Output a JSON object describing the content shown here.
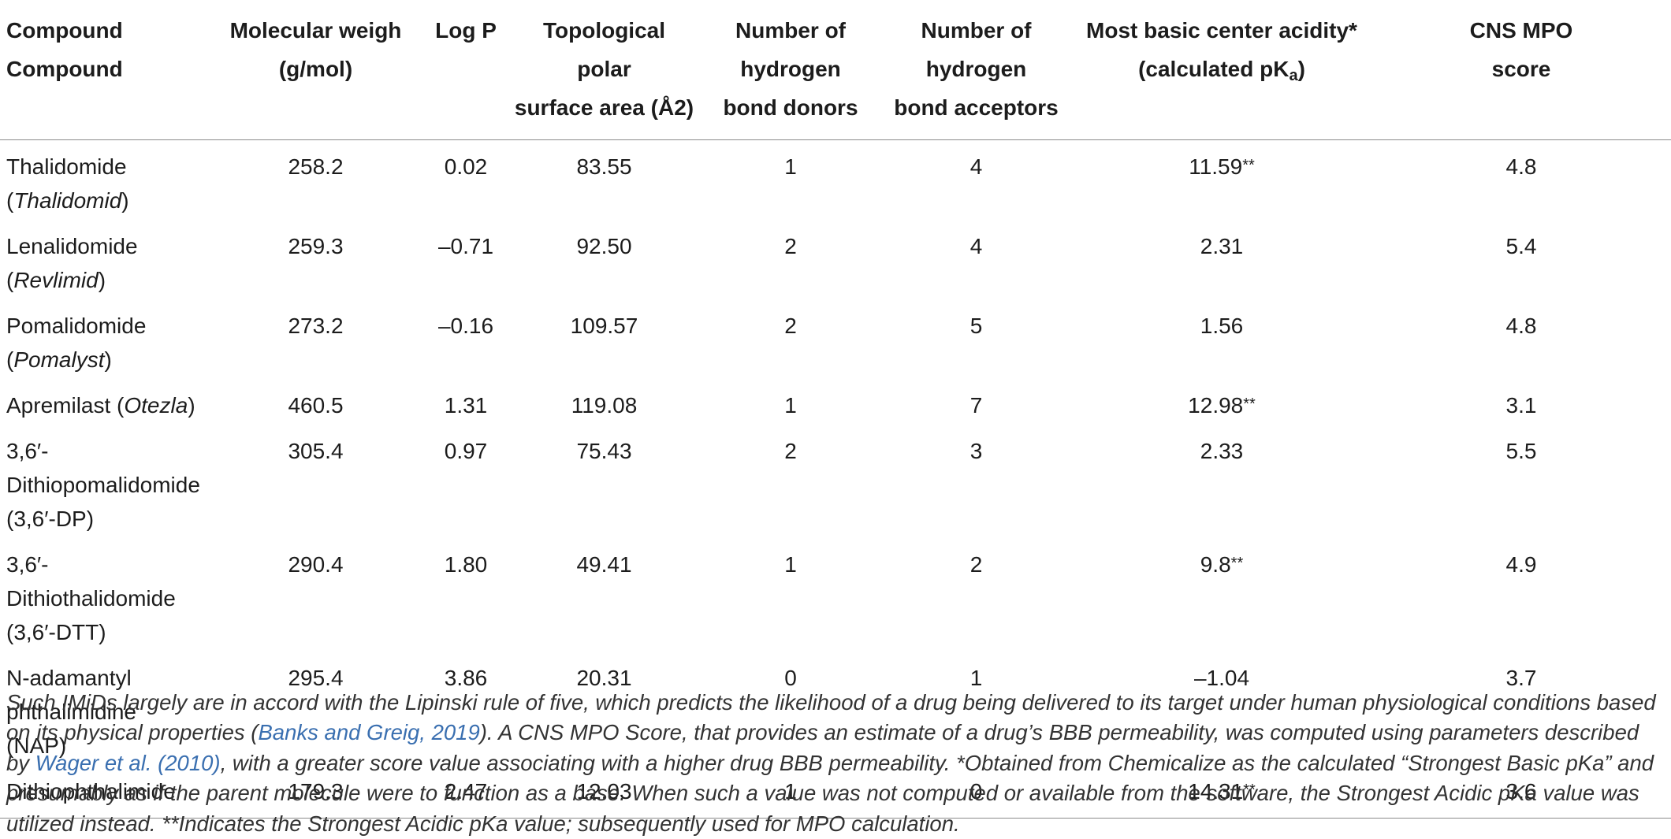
{
  "table": {
    "headers": [
      {
        "line1": "Compound",
        "line2": "Compound"
      },
      {
        "line1": "Molecular weigh",
        "line2": "(g/mol)"
      },
      {
        "line1": "Log P",
        "line2": ""
      },
      {
        "line1": "Topological polar",
        "line2": "surface area (Å2)"
      },
      {
        "line1": "Number of hydrogen",
        "line2": "bond donors"
      },
      {
        "line1": "Number of hydrogen",
        "line2": "bond acceptors"
      },
      {
        "line1": "Most basic center acidity*",
        "line2": "(calculated pK",
        "line2_sub": "a",
        "line2_end": ")"
      },
      {
        "line1": "CNS MPO",
        "line2": "score"
      }
    ],
    "rows": [
      {
        "name": [
          "Thalidomide",
          ""
        ],
        "name_italic": "Thalidomid",
        "name_italic_prefix": "(",
        "name_italic_suffix": ")",
        "mw": "258.2",
        "logp": "0.02",
        "tpsa": "83.55",
        "hbd": "1",
        "hba": "4",
        "pka": "11.59",
        "pka_mark": "**",
        "mpo": "4.8"
      },
      {
        "name": [
          "Lenalidomide",
          ""
        ],
        "name_italic": "Revlimid",
        "name_italic_prefix": "(",
        "name_italic_suffix": ")",
        "mw": "259.3",
        "logp": "–0.71",
        "tpsa": "92.50",
        "hbd": "2",
        "hba": "4",
        "pka": "2.31",
        "pka_mark": "",
        "mpo": "5.4"
      },
      {
        "name": [
          "Pomalidomide",
          ""
        ],
        "name_italic": "Pomalyst",
        "name_italic_prefix": "(",
        "name_italic_suffix": ")",
        "mw": "273.2",
        "logp": "–0.16",
        "tpsa": "109.57",
        "hbd": "2",
        "hba": "5",
        "pka": "1.56",
        "pka_mark": "",
        "mpo": "4.8"
      },
      {
        "name": [
          "Apremilast (",
          ""
        ],
        "name_italic": "Otezla",
        "name_italic_prefix": "",
        "name_italic_suffix": ")",
        "mw": "460.5",
        "logp": "1.31",
        "tpsa": "119.08",
        "hbd": "1",
        "hba": "7",
        "pka": "12.98",
        "pka_mark": "**",
        "mpo": "3.1"
      },
      {
        "name": [
          "3,6′-",
          "Dithiopomalidomide",
          "(3,6′-DP)"
        ],
        "mw": "305.4",
        "logp": "0.97",
        "tpsa": "75.43",
        "hbd": "2",
        "hba": "3",
        "pka": "2.33",
        "pka_mark": "",
        "mpo": "5.5"
      },
      {
        "name": [
          "3,6′-",
          "Dithiothalidomide",
          "(3,6′-DTT)"
        ],
        "mw": "290.4",
        "logp": "1.80",
        "tpsa": "49.41",
        "hbd": "1",
        "hba": "2",
        "pka": "9.8",
        "pka_mark": "**",
        "mpo": "4.9"
      },
      {
        "name": [
          "N-adamantyl",
          "phthalimidine (NAP)"
        ],
        "mw": "295.4",
        "logp": "3.86",
        "tpsa": "20.31",
        "hbd": "0",
        "hba": "1",
        "pka": "–1.04",
        "pka_mark": "",
        "mpo": "3.7"
      },
      {
        "name": [
          "Dithiophthalimide"
        ],
        "mw": "179.3",
        "logp": "2.47",
        "tpsa": "12.03",
        "hbd": "1",
        "hba": "0",
        "pka": "14.31",
        "pka_mark": "**",
        "mpo": "3.6"
      }
    ]
  },
  "footnote": {
    "p1": "Such IMiDs largely are in accord with the Lipinski rule of five, which predicts the likelihood of a drug being delivered to its target under human physiological conditions based on its physical properties (",
    "ref1": "Banks and Greig, 2019",
    "p2": "). A CNS MPO Score, that provides an estimate of a drug’s BBB permeability, was computed using parameters described by ",
    "ref2": "Wager et al. (2010)",
    "p3": ", with a greater score value associating with a higher drug BBB permeability. *Obtained from Chemicalize as the calculated “Strongest Basic pKa” and presumably as if the parent molecule were to function as a base. When such a value was not computed or available from the software, the Strongest Acidic pKa value was utilized instead. **Indicates the Strongest Acidic pKa value; subsequently used for MPO calculation."
  },
  "colors": {
    "text": "#1c1c1c",
    "rule": "#8a8a8a",
    "link": "#3a6fb0",
    "footnote_text": "#333333"
  }
}
